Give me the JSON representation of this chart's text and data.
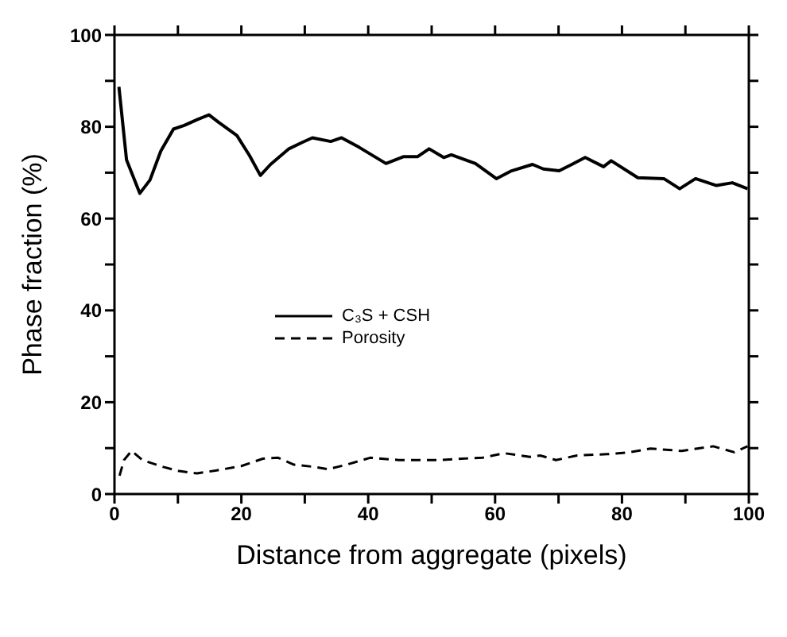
{
  "chart_data": {
    "type": "line",
    "xlabel": "Distance from aggregate (pixels)",
    "ylabel": "Phase fraction (%)",
    "xlim": [
      0,
      100
    ],
    "ylim": [
      0,
      100
    ],
    "xticks": [
      0,
      {
        "value": 10,
        "label": null
      },
      20,
      {
        "value": 30,
        "label": null
      },
      40,
      {
        "value": 50,
        "label": null
      },
      60,
      {
        "value": 70,
        "label": null
      },
      80,
      {
        "value": 90,
        "label": null
      },
      100
    ],
    "yticks": [
      0,
      {
        "value": 10,
        "label": null
      },
      20,
      {
        "value": 30,
        "label": null
      },
      40,
      {
        "value": 50,
        "label": null
      },
      60,
      {
        "value": 70,
        "label": null
      },
      80,
      {
        "value": 90,
        "label": null
      },
      100
    ],
    "legend": "left",
    "marker": "none",
    "series": [
      {
        "name": "C₃S + CSH",
        "color": "#000000",
        "line_style": "solid",
        "x": [
          0.7,
          1.9,
          4,
          5.6,
          7.3,
          9.3,
          11,
          13.1,
          14.9,
          16.4,
          19.3,
          21.3,
          23,
          24.6,
          27.5,
          29.6,
          31.2,
          34.1,
          35.8,
          38.6,
          42.8,
          45.6,
          47.8,
          49.6,
          51.9,
          53.1,
          56.9,
          60.2,
          62.6,
          65.9,
          67.6,
          70.1,
          72.1,
          74.2,
          77.1,
          78.3,
          82.5,
          86.6,
          89.1,
          91.6,
          94.9,
          97.4,
          99.8
        ],
        "values": [
          88.7,
          72.8,
          65.5,
          68.4,
          74.7,
          79.5,
          80.3,
          81.6,
          82.6,
          81,
          78.1,
          73.7,
          69.4,
          71.8,
          75.2,
          76.6,
          77.6,
          76.8,
          77.6,
          75.5,
          72,
          73.5,
          73.5,
          75.2,
          73.3,
          73.9,
          72,
          68.7,
          70.4,
          71.8,
          70.8,
          70.4,
          71.8,
          73.3,
          71.3,
          72.6,
          68.9,
          68.7,
          66.5,
          68.7,
          67.2,
          67.8,
          66.5
        ]
      },
      {
        "name": "Porosity",
        "color": "#000000",
        "line_style": "dashed",
        "x": [
          0.8,
          1.5,
          2.7,
          4.4,
          7.7,
          10.2,
          13,
          15.9,
          20,
          23.4,
          25.8,
          28.3,
          31.6,
          33.7,
          36.6,
          40.3,
          44.8,
          51.4,
          54.7,
          58,
          61.4,
          65.5,
          67.1,
          69.6,
          72.9,
          77.9,
          81.2,
          84.5,
          89.4,
          94.4,
          97.7,
          99.8
        ],
        "values": [
          4,
          7.4,
          9.4,
          7.4,
          5.9,
          5,
          4.5,
          5.1,
          6.1,
          7.7,
          7.9,
          6.4,
          5.9,
          5.4,
          6.4,
          7.9,
          7.4,
          7.4,
          7.7,
          7.9,
          8.9,
          8.1,
          8.4,
          7.4,
          8.4,
          8.7,
          9.1,
          9.9,
          9.4,
          10.4,
          9.1,
          10.4
        ]
      }
    ]
  }
}
